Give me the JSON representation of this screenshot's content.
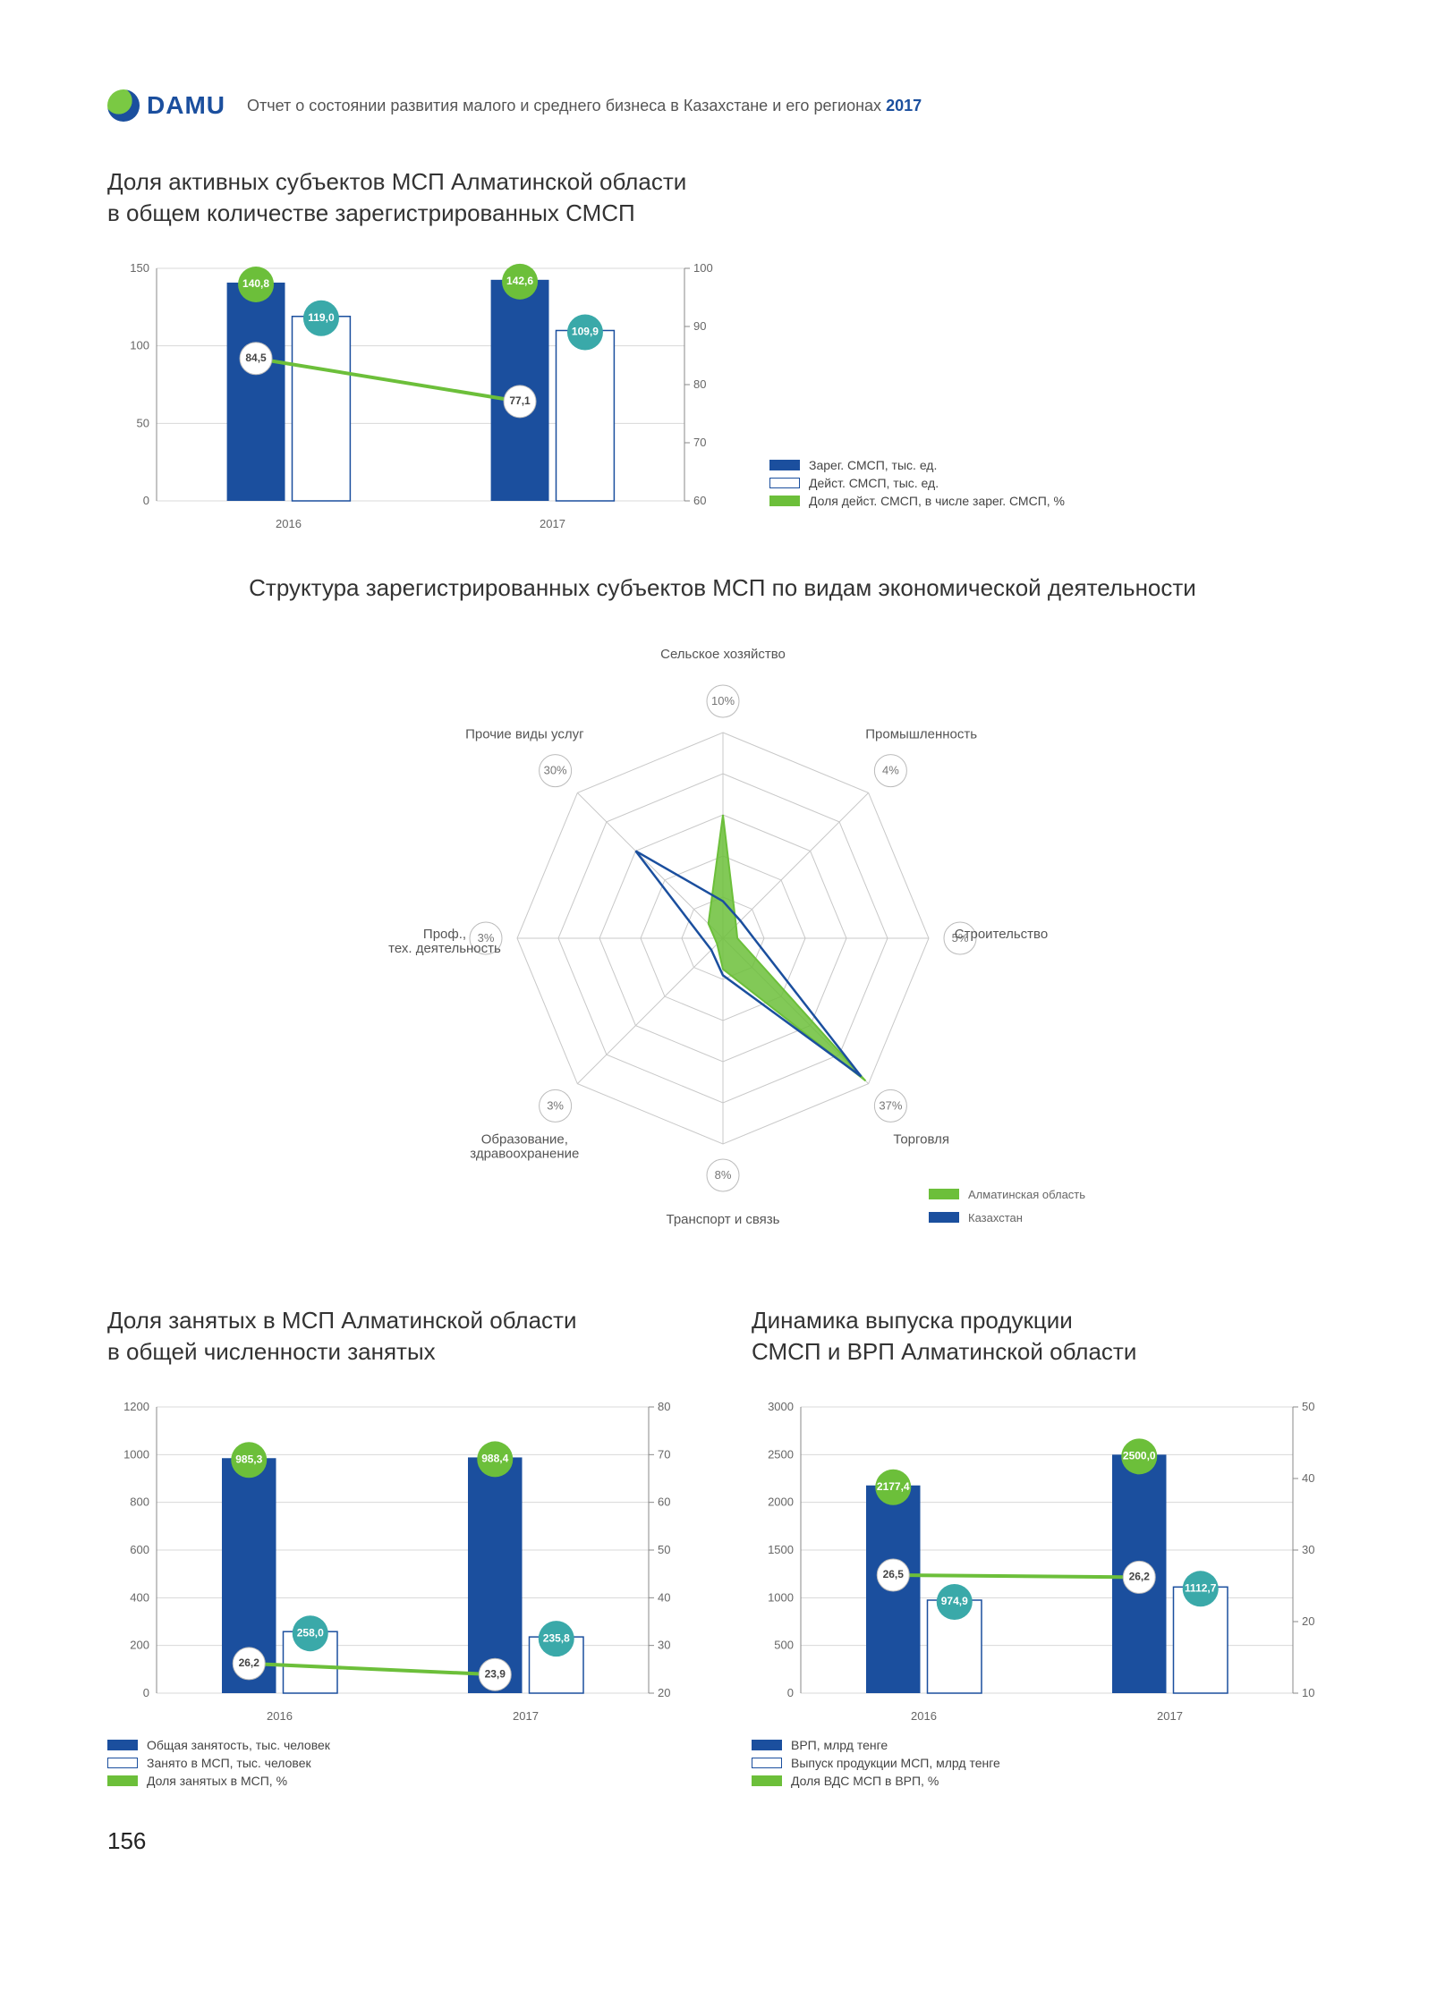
{
  "header": {
    "logo_text": "DAMU",
    "title_pre": "Отчет о состоянии развития малого и среднего бизнеса в Казахстане и его регионах ",
    "year": "2017"
  },
  "page_number": "156",
  "colors": {
    "blue": "#1b4f9e",
    "green": "#6cbf3a",
    "green_line": "#6cbf3a",
    "white": "#ffffff",
    "grid": "#d8d8d8",
    "axis": "#888888",
    "text": "#444444",
    "outline": "#1b4f9e"
  },
  "chart1": {
    "title": "Доля активных субъектов МСП Алматинской области\nв общем количестве зарегистрированных СМСП",
    "categories": [
      "2016",
      "2017"
    ],
    "left_axis": {
      "min": 0,
      "max": 150,
      "step": 50
    },
    "right_axis": {
      "min": 60,
      "max": 100,
      "step": 10
    },
    "bar_blue_values": [
      140.8,
      142.6
    ],
    "bar_white_values": [
      119.0,
      109.9
    ],
    "line_values_pct": [
      84.5,
      77.1
    ],
    "bubble_blue": [
      "140,8",
      "142,6"
    ],
    "bubble_white": [
      "119,0",
      "109,9"
    ],
    "bubble_line": [
      "84,5",
      "77,1"
    ],
    "legend": [
      {
        "label": "Зарег. СМСП, тыс. ед.",
        "color": "#1b4f9e"
      },
      {
        "label": "Дейст. СМСП, тыс. ед.",
        "color": "outlined"
      },
      {
        "label": "Доля дейст. СМСП, в числе зарег. СМСП, %",
        "color": "#6cbf3a"
      }
    ]
  },
  "radar": {
    "title": "Структура зарегистрированных субъектов МСП по видам экономической деятельности",
    "axes": [
      {
        "label": "Сельское хозяйство",
        "pct": "10%"
      },
      {
        "label": "Промышленность",
        "pct": "4%"
      },
      {
        "label": "Строительство",
        "pct": "5%"
      },
      {
        "label": "Торговля",
        "pct": "37%"
      },
      {
        "label": "Транспорт и связь",
        "pct": "8%"
      },
      {
        "label": "Образование,\nздравоохранение",
        "pct": "3%"
      },
      {
        "label": "Проф.,\nтех. деятельность",
        "pct": "3%"
      },
      {
        "label": "Прочие виды услуг",
        "pct": "30%"
      }
    ],
    "series": [
      {
        "name": "Алматинская область",
        "color": "#6cbf3a",
        "values": [
          0.6,
          0.09,
          0.07,
          0.98,
          0.15,
          0.04,
          0.04,
          0.1
        ]
      },
      {
        "name": "Казахстан",
        "color": "#1b4f9e",
        "values": [
          0.18,
          0.12,
          0.15,
          0.95,
          0.18,
          0.08,
          0.1,
          0.6
        ]
      }
    ],
    "rings": 5
  },
  "chart3": {
    "title": "Доля занятых в МСП Алматинской области\nв общей численности занятых",
    "categories": [
      "2016",
      "2017"
    ],
    "left_axis": {
      "min": 0,
      "max": 1200,
      "step": 200
    },
    "right_axis": {
      "min": 20,
      "max": 80,
      "step": 10
    },
    "bar_blue_values": [
      985.3,
      988.4
    ],
    "bar_white_values": [
      258.0,
      235.8
    ],
    "line_values_pct": [
      26.2,
      23.9
    ],
    "bubble_blue": [
      "985,3",
      "988,4"
    ],
    "bubble_white": [
      "258,0",
      "235,8"
    ],
    "bubble_line": [
      "26,2",
      "23,9"
    ],
    "legend": [
      {
        "label": "Общая занятость, тыс. человек",
        "color": "#1b4f9e"
      },
      {
        "label": "Занято в МСП, тыс. человек",
        "color": "outlined"
      },
      {
        "label": "Доля занятых в МСП, %",
        "color": "#6cbf3a"
      }
    ]
  },
  "chart4": {
    "title": "Динамика выпуска продукции\nСМСП и ВРП Алматинской области",
    "categories": [
      "2016",
      "2017"
    ],
    "left_axis": {
      "min": 0,
      "max": 3000,
      "step": 500
    },
    "right_axis": {
      "min": 10,
      "max": 50,
      "step": 10
    },
    "bar_blue_values": [
      2177.4,
      2500.0
    ],
    "bar_white_values": [
      974.9,
      1112.7
    ],
    "line_values_pct": [
      26.5,
      26.2
    ],
    "bubble_blue": [
      "2177,4",
      "2500,0"
    ],
    "bubble_white": [
      "974,9",
      "1112,7"
    ],
    "bubble_line": [
      "26,5",
      "26,2"
    ],
    "legend": [
      {
        "label": "ВРП, млрд тенге",
        "color": "#1b4f9e"
      },
      {
        "label": "Выпуск продукции МСП, млрд тенге",
        "color": "outlined"
      },
      {
        "label": "Доля ВДС МСП в ВРП, %",
        "color": "#6cbf3a"
      }
    ]
  }
}
